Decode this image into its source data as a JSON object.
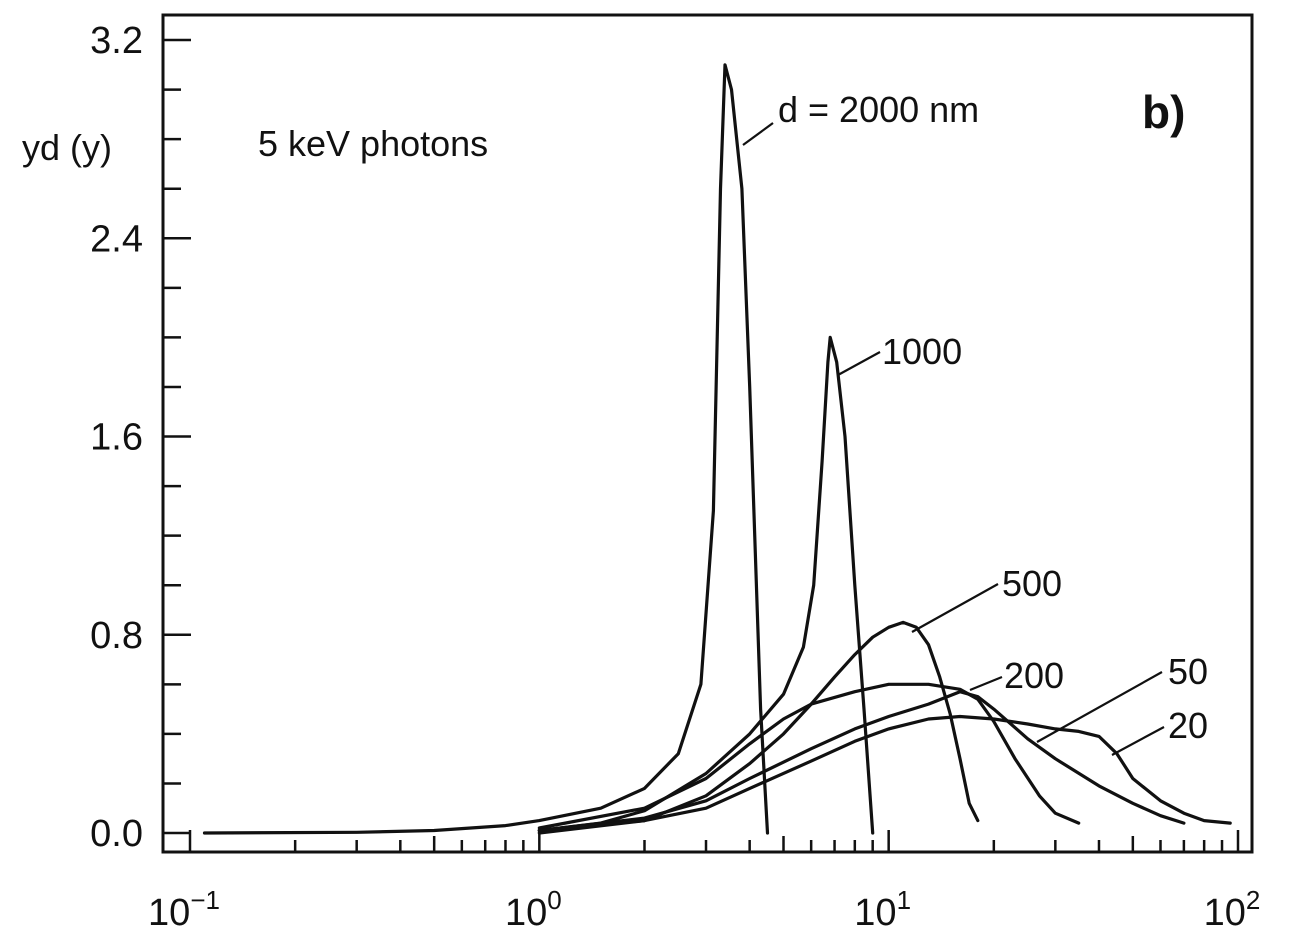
{
  "chart_data": {
    "type": "line",
    "panel_label": "b)",
    "ylabel": "yd (y)",
    "annotation": "5 keV photons",
    "xscale": "log",
    "xlim": [
      0.1,
      100
    ],
    "ylim": [
      0.0,
      3.2
    ],
    "x_tick_labels": [
      {
        "value": 0.1,
        "base": "10",
        "exp": "−1"
      },
      {
        "value": 1,
        "base": "10",
        "exp": "0"
      },
      {
        "value": 10,
        "base": "10",
        "exp": "1"
      },
      {
        "value": 100,
        "base": "10",
        "exp": "2"
      }
    ],
    "y_tick_labels": [
      {
        "value": 0.0,
        "label": "0.0"
      },
      {
        "value": 0.8,
        "label": "0.8"
      },
      {
        "value": 1.6,
        "label": "1.6"
      },
      {
        "value": 2.4,
        "label": "2.4"
      },
      {
        "value": 3.2,
        "label": "3.2"
      }
    ],
    "series": [
      {
        "name": "d = 2000 nm",
        "label_text": "d = 2000 nm",
        "color": "#111111",
        "points": [
          [
            0.11,
            0.0
          ],
          [
            0.3,
            0.003
          ],
          [
            0.5,
            0.01
          ],
          [
            0.8,
            0.03
          ],
          [
            1.0,
            0.05
          ],
          [
            1.5,
            0.1
          ],
          [
            2.0,
            0.18
          ],
          [
            2.5,
            0.32
          ],
          [
            2.9,
            0.6
          ],
          [
            3.15,
            1.3
          ],
          [
            3.3,
            2.6
          ],
          [
            3.4,
            3.1
          ],
          [
            3.55,
            3.0
          ],
          [
            3.8,
            2.6
          ],
          [
            4.0,
            1.8
          ],
          [
            4.3,
            0.5
          ],
          [
            4.5,
            0.0
          ]
        ]
      },
      {
        "name": "1000",
        "label_text": "1000",
        "color": "#111111",
        "points": [
          [
            1.0,
            0.01
          ],
          [
            1.5,
            0.04
          ],
          [
            2.0,
            0.09
          ],
          [
            3.0,
            0.24
          ],
          [
            4.0,
            0.4
          ],
          [
            5.0,
            0.56
          ],
          [
            5.7,
            0.75
          ],
          [
            6.1,
            1.0
          ],
          [
            6.45,
            1.5
          ],
          [
            6.7,
            1.9
          ],
          [
            6.8,
            2.0
          ],
          [
            7.1,
            1.9
          ],
          [
            7.5,
            1.6
          ],
          [
            8.0,
            1.0
          ],
          [
            8.5,
            0.5
          ],
          [
            9.0,
            0.0
          ]
        ]
      },
      {
        "name": "500",
        "label_text": "500",
        "color": "#111111",
        "points": [
          [
            1.0,
            0.0
          ],
          [
            2.0,
            0.05
          ],
          [
            3.0,
            0.15
          ],
          [
            4.0,
            0.28
          ],
          [
            5.0,
            0.4
          ],
          [
            6.0,
            0.52
          ],
          [
            7.0,
            0.63
          ],
          [
            8.0,
            0.72
          ],
          [
            9.0,
            0.79
          ],
          [
            10.0,
            0.83
          ],
          [
            11.0,
            0.85
          ],
          [
            12.0,
            0.83
          ],
          [
            13.0,
            0.76
          ],
          [
            14.0,
            0.63
          ],
          [
            15.0,
            0.48
          ],
          [
            16.0,
            0.3
          ],
          [
            17.0,
            0.12
          ],
          [
            18.0,
            0.05
          ]
        ]
      },
      {
        "name": "200",
        "label_text": "200",
        "color": "#111111",
        "points": [
          [
            1.0,
            0.02
          ],
          [
            2.0,
            0.1
          ],
          [
            3.0,
            0.22
          ],
          [
            4.0,
            0.36
          ],
          [
            5.0,
            0.46
          ],
          [
            6.0,
            0.52
          ],
          [
            8.0,
            0.57
          ],
          [
            10.0,
            0.6
          ],
          [
            13.0,
            0.6
          ],
          [
            16.0,
            0.58
          ],
          [
            18.0,
            0.54
          ],
          [
            20.0,
            0.45
          ],
          [
            23.0,
            0.3
          ],
          [
            27.0,
            0.15
          ],
          [
            30.0,
            0.08
          ],
          [
            35.0,
            0.04
          ]
        ]
      },
      {
        "name": "50",
        "label_text": "50",
        "color": "#111111",
        "points": [
          [
            1.0,
            0.01
          ],
          [
            2.0,
            0.06
          ],
          [
            3.0,
            0.13
          ],
          [
            4.0,
            0.22
          ],
          [
            6.0,
            0.34
          ],
          [
            8.0,
            0.42
          ],
          [
            10.0,
            0.47
          ],
          [
            13.0,
            0.52
          ],
          [
            16.0,
            0.57
          ],
          [
            18.0,
            0.55
          ],
          [
            20.0,
            0.5
          ],
          [
            25.0,
            0.38
          ],
          [
            30.0,
            0.3
          ],
          [
            40.0,
            0.19
          ],
          [
            50.0,
            0.12
          ],
          [
            60.0,
            0.07
          ],
          [
            70.0,
            0.04
          ]
        ]
      },
      {
        "name": "20",
        "label_text": "20",
        "color": "#111111",
        "points": [
          [
            1.0,
            0.01
          ],
          [
            2.0,
            0.05
          ],
          [
            3.0,
            0.1
          ],
          [
            4.0,
            0.18
          ],
          [
            6.0,
            0.29
          ],
          [
            8.0,
            0.37
          ],
          [
            10.0,
            0.42
          ],
          [
            13.0,
            0.46
          ],
          [
            16.0,
            0.47
          ],
          [
            20.0,
            0.46
          ],
          [
            25.0,
            0.44
          ],
          [
            30.0,
            0.42
          ],
          [
            35.0,
            0.41
          ],
          [
            40.0,
            0.39
          ],
          [
            45.0,
            0.32
          ],
          [
            50.0,
            0.22
          ],
          [
            60.0,
            0.13
          ],
          [
            70.0,
            0.08
          ],
          [
            80.0,
            0.05
          ],
          [
            95.0,
            0.04
          ]
        ]
      }
    ]
  }
}
